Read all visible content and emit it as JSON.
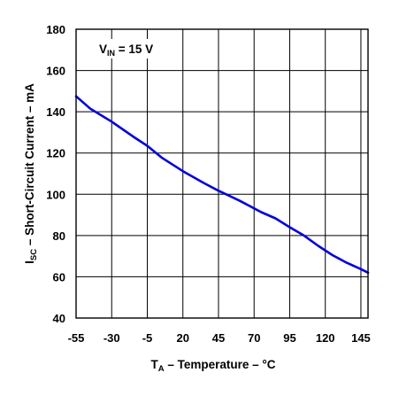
{
  "chart_data": {
    "type": "line",
    "title": "",
    "xlabel_main": "T",
    "xlabel_sub": "A",
    "xlabel_rest": " – Temperature – °C",
    "ylabel_main": "I",
    "ylabel_sub": "SC",
    "ylabel_rest": " – Short-Circuit Current – mA",
    "annotation_main": "V",
    "annotation_sub": "IN",
    "annotation_rest": " = 15 V",
    "xlim": [
      -55,
      150
    ],
    "ylim": [
      40,
      180
    ],
    "x_ticks": [
      -55,
      -30,
      -5,
      20,
      45,
      70,
      95,
      120,
      145
    ],
    "y_ticks": [
      40,
      60,
      80,
      100,
      120,
      140,
      160,
      180
    ],
    "x_tick_labels": [
      "-55",
      "-30",
      "-5",
      "20",
      "45",
      "70",
      "95",
      "120",
      "145"
    ],
    "y_tick_labels": [
      "40",
      "60",
      "80",
      "100",
      "120",
      "140",
      "160",
      "180"
    ],
    "grid": true,
    "series": [
      {
        "color": "#0000e0",
        "x": [
          -55,
          -45,
          -30,
          -15,
          -5,
          5,
          20,
          35,
          45,
          60,
          75,
          85,
          95,
          105,
          115,
          125,
          135,
          145,
          150
        ],
        "y": [
          147.5,
          141.5,
          135.2,
          128.0,
          123.5,
          117.8,
          111.2,
          105.3,
          101.7,
          96.8,
          91.3,
          88.3,
          84.0,
          80.0,
          75.0,
          70.5,
          66.8,
          63.7,
          62.0
        ]
      }
    ]
  }
}
